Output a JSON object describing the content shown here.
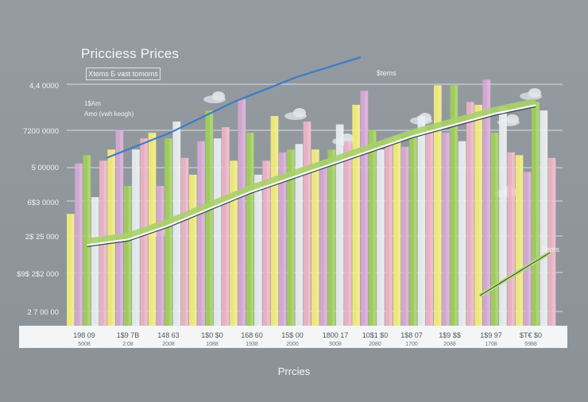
{
  "chart_data": {
    "type": "bar",
    "title": "Pricciess Prices",
    "legend_label": "Xtems Б vast tomoms",
    "subtitle_lines": [
      "1$Am",
      "Amo (vwh keogh)"
    ],
    "xlabel": "Prrcies",
    "yticks": [
      "4,4 0000",
      "7200 0000",
      "5 00000",
      "6$3 0000",
      "2$ 25 000",
      "$9$ 2$2 000",
      "2 7 00 00"
    ],
    "xticks": [
      {
        "top": "198 09",
        "bottom": "5008"
      },
      {
        "top": "1$9 7B",
        "bottom": "2:08"
      },
      {
        "top": "148 63",
        "bottom": "2008"
      },
      {
        "top": "1$0 $0",
        "bottom": "1088"
      },
      {
        "top": "168 60",
        "bottom": "1938"
      },
      {
        "top": "15$ 00",
        "bottom": "2000"
      },
      {
        "top": "1800 17",
        "bottom": "5008"
      },
      {
        "top": "10$1 $0",
        "bottom": "2080"
      },
      {
        "top": "1$8 07",
        "bottom": "1700"
      },
      {
        "top": "1$9 $$",
        "bottom": "2088"
      },
      {
        "top": "1$9 97",
        "bottom": "1708"
      },
      {
        "top": "$T€ $0",
        "bottom": "5988"
      }
    ],
    "annotations": [
      "$tems",
      "$ems"
    ],
    "series": [
      {
        "color": "#f4ee7a",
        "values": [
          4.0,
          6.3,
          6.9,
          5.4,
          5.9,
          7.5,
          6.3,
          7.9,
          6.8,
          8.6,
          7.9,
          6.1
        ]
      },
      {
        "color": "#d8a8d6",
        "values": [
          5.8,
          7.0,
          5.0,
          6.6,
          8.1,
          6.2,
          5.7,
          8.4,
          6.4,
          6.9,
          8.8,
          5.5
        ]
      },
      {
        "color": "#9fcf57",
        "values": [
          6.1,
          5.0,
          6.7,
          7.7,
          6.9,
          6.3,
          6.3,
          7.0,
          7.0,
          8.6,
          6.9,
          8.0
        ]
      },
      {
        "color": "#e9eef2",
        "values": [
          4.6,
          6.3,
          7.3,
          6.7,
          5.4,
          6.5,
          7.2,
          6.3,
          7.5,
          6.6,
          7.8,
          7.7
        ]
      },
      {
        "color": "#efb3c6",
        "values": [
          5.9,
          6.7,
          6.0,
          7.1,
          5.9,
          7.3,
          6.6,
          6.7,
          7.0,
          8.0,
          6.2,
          6.0
        ]
      }
    ],
    "trend": [
      3.0,
      3.2,
      3.7,
      4.3,
      4.9,
      5.4,
      5.9,
      6.4,
      6.9,
      7.3,
      7.7,
      8.0
    ],
    "upper_curve": [
      6.0,
      6.9,
      8.0,
      8.9,
      9.6
    ],
    "ylim": [
      0,
      10
    ],
    "grid": true
  }
}
